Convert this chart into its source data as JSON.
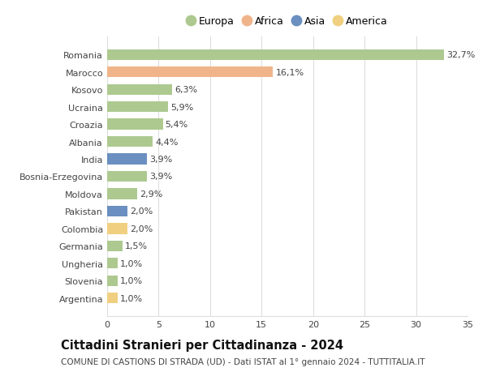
{
  "countries": [
    "Romania",
    "Marocco",
    "Kosovo",
    "Ucraina",
    "Croazia",
    "Albania",
    "India",
    "Bosnia-Erzegovina",
    "Moldova",
    "Pakistan",
    "Colombia",
    "Germania",
    "Ungheria",
    "Slovenia",
    "Argentina"
  ],
  "values": [
    32.7,
    16.1,
    6.3,
    5.9,
    5.4,
    4.4,
    3.9,
    3.9,
    2.9,
    2.0,
    2.0,
    1.5,
    1.0,
    1.0,
    1.0
  ],
  "labels": [
    "32,7%",
    "16,1%",
    "6,3%",
    "5,9%",
    "5,4%",
    "4,4%",
    "3,9%",
    "3,9%",
    "2,9%",
    "2,0%",
    "2,0%",
    "1,5%",
    "1,0%",
    "1,0%",
    "1,0%"
  ],
  "continents": [
    "Europa",
    "Africa",
    "Europa",
    "Europa",
    "Europa",
    "Europa",
    "Asia",
    "Europa",
    "Europa",
    "Asia",
    "America",
    "Europa",
    "Europa",
    "Europa",
    "America"
  ],
  "continent_colors": {
    "Europa": "#adc990",
    "Africa": "#f0b48a",
    "Asia": "#6a8fc0",
    "America": "#f0d080"
  },
  "legend_order": [
    "Europa",
    "Africa",
    "Asia",
    "America"
  ],
  "title": "Cittadini Stranieri per Cittadinanza - 2024",
  "subtitle": "COMUNE DI CASTIONS DI STRADA (UD) - Dati ISTAT al 1° gennaio 2024 - TUTTITALIA.IT",
  "xlim": [
    0,
    35
  ],
  "xticks": [
    0,
    5,
    10,
    15,
    20,
    25,
    30,
    35
  ],
  "background_color": "#ffffff",
  "grid_color": "#dddddd",
  "bar_height": 0.62,
  "label_fontsize": 8.0,
  "title_fontsize": 10.5,
  "subtitle_fontsize": 7.5,
  "tick_fontsize": 8.0,
  "legend_fontsize": 9.0
}
